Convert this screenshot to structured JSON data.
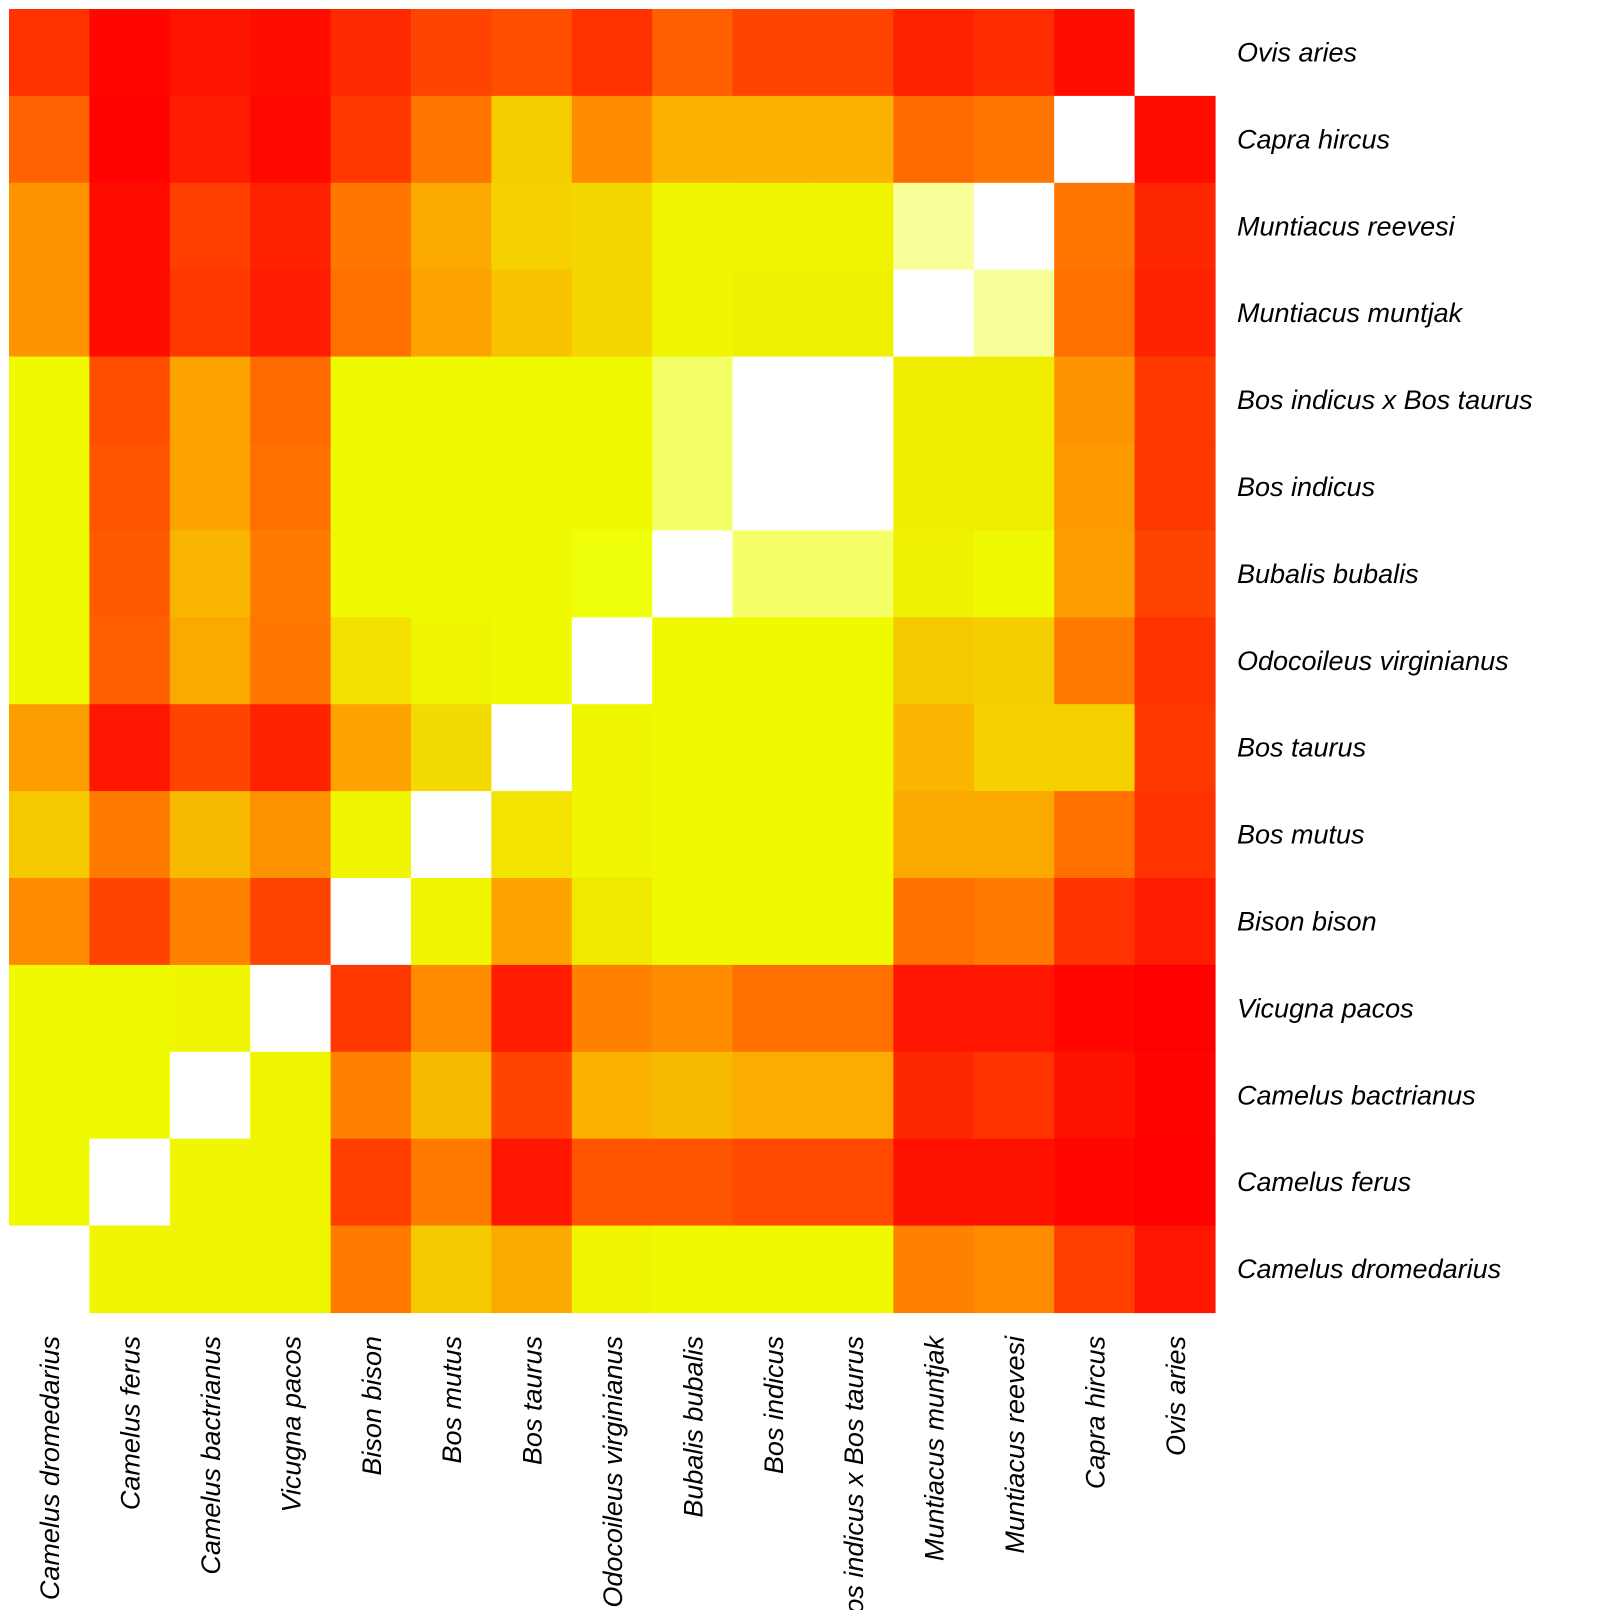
{
  "chart_data": {
    "type": "heatmap",
    "title": "",
    "xlabel": "",
    "ylabel": "",
    "legend": "none",
    "color_scale": {
      "high_color": "#ff0000",
      "mid_color": "#ff8c00",
      "low_color": "#eeff00",
      "diagonal_color": "#ffffff"
    },
    "columns": [
      "Camelus dromedarius",
      "Camelus ferus",
      "Camelus bactrianus",
      "Vicugna pacos",
      "Bison bison",
      "Bos mutus",
      "Bos taurus",
      "Odocoileus virginianus",
      "Bubalis bubalis",
      "Bos indicus",
      "Bos indicus x Bos taurus",
      "Muntiacus muntjak",
      "Muntiacus reevesi",
      "Capra hircus",
      "Ovis aries"
    ],
    "rows": [
      "Ovis aries",
      "Capra hircus",
      "Muntiacus reevesi",
      "Muntiacus muntjak",
      "Bos indicus x Bos taurus",
      "Bos indicus",
      "Bubalis bubalis",
      "Odocoileus virginianus",
      "Bos taurus",
      "Bos mutus",
      "Bison bison",
      "Vicugna pacos",
      "Camelus bactrianus",
      "Camelus ferus",
      "Camelus dromedarius"
    ],
    "values": [
      [
        0.82,
        0.98,
        0.93,
        0.95,
        0.85,
        0.76,
        0.72,
        0.82,
        0.66,
        0.76,
        0.76,
        0.88,
        0.84,
        0.95,
        null
      ],
      [
        0.65,
        0.99,
        0.9,
        0.97,
        0.8,
        0.58,
        0.22,
        0.5,
        0.34,
        0.34,
        0.34,
        0.62,
        0.58,
        null,
        0.95
      ],
      [
        0.46,
        0.96,
        0.78,
        0.88,
        0.58,
        0.38,
        0.2,
        0.18,
        0.04,
        0.05,
        0.05,
        -0.6,
        null,
        0.58,
        0.86
      ],
      [
        0.46,
        0.96,
        0.8,
        0.9,
        0.6,
        0.4,
        0.26,
        0.18,
        0.04,
        0.06,
        0.06,
        null,
        -0.6,
        0.6,
        0.88
      ],
      [
        0.02,
        0.72,
        0.4,
        0.62,
        0.02,
        0.02,
        0.02,
        0.02,
        -0.4,
        null,
        null,
        0.08,
        0.08,
        0.46,
        0.8
      ],
      [
        0.02,
        0.7,
        0.4,
        0.6,
        0.02,
        0.02,
        0.02,
        0.02,
        -0.4,
        null,
        null,
        0.08,
        0.08,
        0.44,
        0.8
      ],
      [
        0.02,
        0.68,
        0.32,
        0.56,
        0.02,
        0.02,
        0.02,
        -0.04,
        null,
        -0.4,
        -0.4,
        0.06,
        0.02,
        0.42,
        0.76
      ],
      [
        0.02,
        0.66,
        0.38,
        0.58,
        0.14,
        0.04,
        0.02,
        null,
        0.02,
        0.02,
        0.02,
        0.24,
        0.22,
        0.56,
        0.82
      ],
      [
        0.42,
        0.92,
        0.76,
        0.88,
        0.4,
        0.16,
        null,
        0.04,
        0.02,
        0.02,
        0.02,
        0.32,
        0.2,
        0.2,
        0.8
      ],
      [
        0.24,
        0.56,
        0.3,
        0.48,
        0.04,
        null,
        0.12,
        0.04,
        0.02,
        0.02,
        0.02,
        0.38,
        0.38,
        0.6,
        0.82
      ],
      [
        0.5,
        0.76,
        0.54,
        0.76,
        null,
        0.04,
        0.4,
        0.1,
        0.02,
        0.02,
        0.02,
        0.6,
        0.56,
        0.82,
        0.9
      ],
      [
        0.02,
        0.02,
        0.04,
        null,
        0.8,
        0.5,
        0.9,
        0.54,
        0.5,
        0.6,
        0.6,
        0.92,
        0.92,
        0.98,
        1.0
      ],
      [
        0.02,
        0.02,
        null,
        0.04,
        0.54,
        0.3,
        0.76,
        0.34,
        0.3,
        0.36,
        0.36,
        0.86,
        0.82,
        0.94,
        0.99
      ],
      [
        0.02,
        null,
        0.04,
        0.04,
        0.78,
        0.56,
        0.92,
        0.7,
        0.7,
        0.74,
        0.74,
        0.94,
        0.94,
        0.98,
        1.0
      ],
      [
        null,
        0.04,
        0.04,
        0.04,
        0.56,
        0.24,
        0.38,
        0.04,
        0.02,
        0.02,
        0.02,
        0.54,
        0.5,
        0.78,
        0.92
      ]
    ]
  }
}
